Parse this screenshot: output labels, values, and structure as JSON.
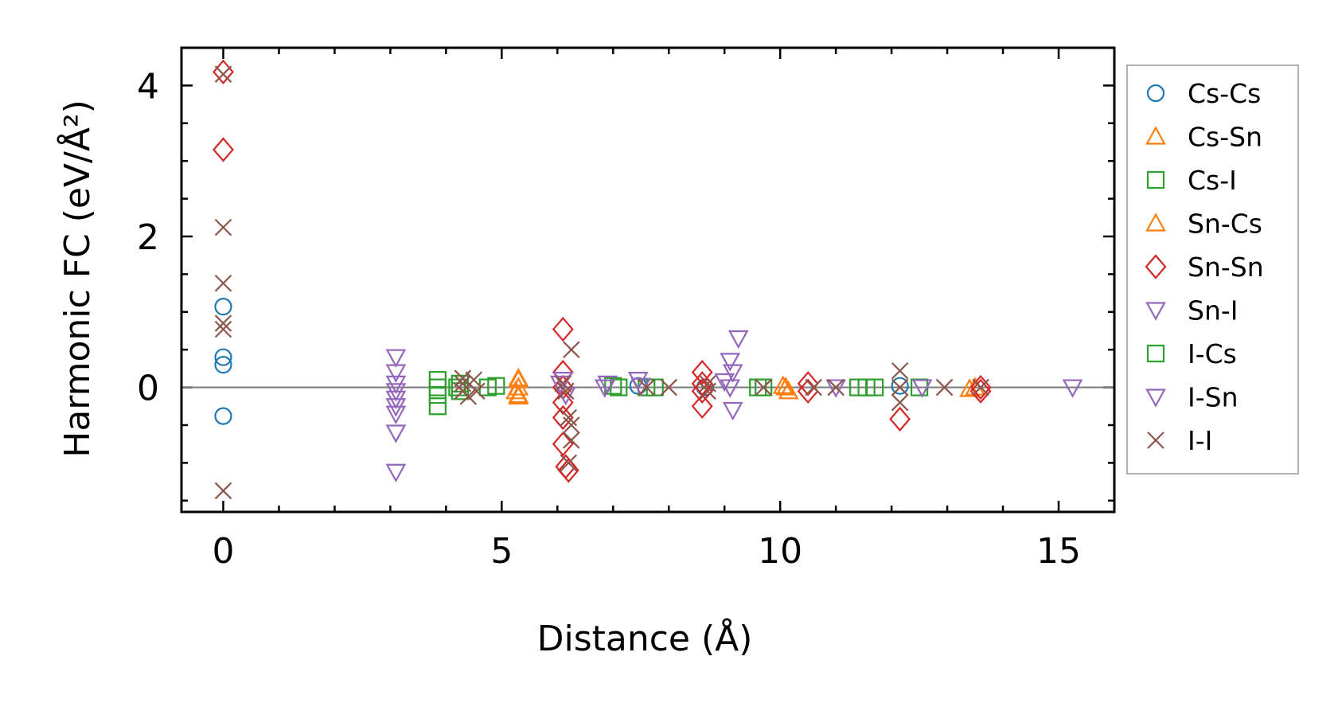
{
  "chart_data": {
    "type": "scatter",
    "xlabel": "Distance (Å)",
    "ylabel": "Harmonic FC (eV/Å²)",
    "xlim": [
      -0.75,
      16.0
    ],
    "ylim": [
      -1.65,
      4.5
    ],
    "xticks": [
      0,
      5,
      10,
      15
    ],
    "yticks": [
      0,
      2,
      4
    ],
    "zero_line": true,
    "legend_position": "right, outside plot",
    "series": [
      {
        "name": "Cs-Cs",
        "marker": "circle",
        "color": "#1f77b4",
        "points": [
          [
            0,
            1.07
          ],
          [
            0,
            0.4
          ],
          [
            0,
            0.3
          ],
          [
            0,
            -0.38
          ],
          [
            7.45,
            0.02
          ],
          [
            8.65,
            0.0
          ],
          [
            12.15,
            0.02
          ]
        ]
      },
      {
        "name": "Cs-Sn",
        "marker": "triangle-up",
        "color": "#ff7f0e",
        "points": [
          [
            5.3,
            0.1
          ],
          [
            5.3,
            0.0
          ],
          [
            5.3,
            -0.1
          ],
          [
            5.25,
            -0.05
          ],
          [
            10.1,
            0.0
          ],
          [
            10.15,
            -0.05
          ],
          [
            13.4,
            -0.02
          ]
        ]
      },
      {
        "name": "Cs-I",
        "marker": "square",
        "color": "#2ca02c",
        "points": [
          [
            3.85,
            0.1
          ],
          [
            3.85,
            0.0
          ],
          [
            3.85,
            -0.1
          ],
          [
            3.85,
            -0.25
          ],
          [
            4.25,
            0.05
          ],
          [
            4.25,
            -0.05
          ],
          [
            4.9,
            0.02
          ],
          [
            7.0,
            0.02
          ],
          [
            7.6,
            0.0
          ],
          [
            9.7,
            0.0
          ],
          [
            11.4,
            0.0
          ],
          [
            11.7,
            0.0
          ],
          [
            12.5,
            0.0
          ]
        ]
      },
      {
        "name": "Sn-Cs",
        "marker": "triangle-up",
        "color": "#ff7f0e",
        "points": [
          [
            5.3,
            0.12
          ],
          [
            5.3,
            -0.12
          ],
          [
            10.05,
            0.02
          ],
          [
            13.5,
            0.0
          ]
        ]
      },
      {
        "name": "Sn-Sn",
        "marker": "diamond",
        "color": "#d62728",
        "points": [
          [
            0,
            4.18
          ],
          [
            0,
            3.15
          ],
          [
            6.1,
            0.77
          ],
          [
            6.1,
            0.2
          ],
          [
            6.1,
            0.0
          ],
          [
            6.1,
            -0.2
          ],
          [
            6.1,
            -0.4
          ],
          [
            6.1,
            -0.75
          ],
          [
            6.15,
            -1.05
          ],
          [
            6.2,
            -1.1
          ],
          [
            8.6,
            0.2
          ],
          [
            8.6,
            0.05
          ],
          [
            8.6,
            -0.05
          ],
          [
            8.6,
            -0.25
          ],
          [
            10.5,
            0.05
          ],
          [
            10.5,
            -0.05
          ],
          [
            12.15,
            -0.42
          ],
          [
            13.6,
            -0.05
          ],
          [
            13.6,
            0.0
          ]
        ]
      },
      {
        "name": "Sn-I",
        "marker": "triangle-down",
        "color": "#9467bd",
        "points": [
          [
            3.1,
            0.4
          ],
          [
            3.1,
            0.2
          ],
          [
            3.1,
            0.05
          ],
          [
            3.1,
            -0.05
          ],
          [
            3.1,
            -0.15
          ],
          [
            3.1,
            -0.25
          ],
          [
            3.1,
            -0.35
          ],
          [
            3.1,
            -0.6
          ],
          [
            3.1,
            -1.12
          ],
          [
            6.1,
            0.1
          ],
          [
            6.15,
            -0.1
          ],
          [
            6.9,
            0.05
          ],
          [
            7.45,
            0.1
          ],
          [
            9.1,
            0.35
          ],
          [
            9.15,
            0.2
          ],
          [
            9.1,
            0.0
          ],
          [
            9.15,
            -0.3
          ],
          [
            9.25,
            0.65
          ]
        ]
      },
      {
        "name": "I-Cs",
        "marker": "square",
        "color": "#2ca02c",
        "points": [
          [
            4.2,
            0.0
          ],
          [
            4.75,
            0.0
          ],
          [
            7.1,
            0.0
          ],
          [
            7.75,
            0.0
          ],
          [
            9.6,
            0.0
          ],
          [
            11.55,
            0.0
          ]
        ]
      },
      {
        "name": "I-Sn",
        "marker": "triangle-down",
        "color": "#9467bd",
        "points": [
          [
            6.05,
            0.05
          ],
          [
            6.85,
            0.0
          ],
          [
            7.5,
            0.02
          ],
          [
            9.0,
            0.08
          ],
          [
            11.0,
            0.0
          ],
          [
            12.55,
            0.0
          ],
          [
            15.25,
            0.0
          ]
        ]
      },
      {
        "name": "I-I",
        "marker": "x",
        "color": "#8c564b",
        "points": [
          [
            0,
            4.15
          ],
          [
            0,
            2.12
          ],
          [
            0,
            1.38
          ],
          [
            0,
            0.85
          ],
          [
            0,
            0.77
          ],
          [
            0,
            -1.37
          ],
          [
            4.3,
            0.12
          ],
          [
            4.3,
            0.05
          ],
          [
            4.3,
            -0.05
          ],
          [
            4.4,
            -0.12
          ],
          [
            4.5,
            0.1
          ],
          [
            4.55,
            -0.05
          ],
          [
            6.1,
            0.05
          ],
          [
            6.15,
            -0.05
          ],
          [
            6.2,
            -0.4
          ],
          [
            6.25,
            0.5
          ],
          [
            6.25,
            -0.5
          ],
          [
            6.25,
            -0.7
          ],
          [
            6.2,
            -1.0
          ],
          [
            7.6,
            0.0
          ],
          [
            8.0,
            0.0
          ],
          [
            8.7,
            0.05
          ],
          [
            8.7,
            -0.05
          ],
          [
            9.7,
            0.0
          ],
          [
            10.6,
            0.0
          ],
          [
            11.0,
            0.0
          ],
          [
            12.15,
            0.22
          ],
          [
            12.15,
            -0.2
          ],
          [
            12.15,
            0.0
          ],
          [
            12.95,
            0.0
          ],
          [
            13.6,
            0.0
          ]
        ]
      }
    ]
  }
}
